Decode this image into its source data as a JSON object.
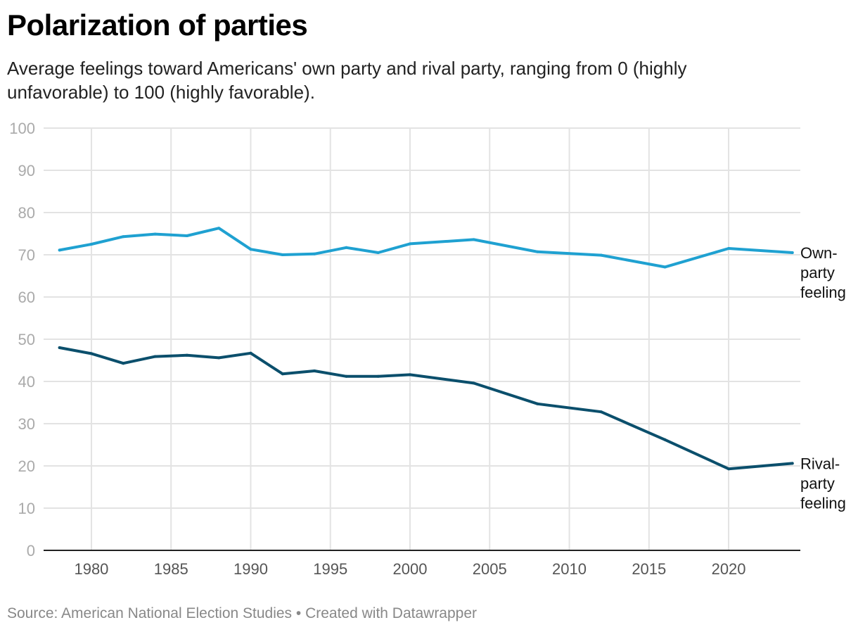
{
  "header": {
    "title": "Polarization of parties",
    "subtitle": "Average feelings toward Americans' own party and rival party, ranging from 0 (highly unfavorable) to 100 (highly favorable)."
  },
  "footer": {
    "source": "Source: American National Election Studies • Created with Datawrapper"
  },
  "chart_data": {
    "type": "line",
    "title": "Polarization of parties",
    "xlabel": "",
    "ylabel": "",
    "xlim": [
      1977,
      2024.5
    ],
    "ylim": [
      0,
      100
    ],
    "yticks": [
      0,
      10,
      20,
      30,
      40,
      50,
      60,
      70,
      80,
      90,
      100
    ],
    "xticks": [
      1980,
      1985,
      1990,
      1995,
      2000,
      2005,
      2010,
      2015,
      2020
    ],
    "grid": true,
    "legend": "direct labels at line ends (right)",
    "x": [
      1978,
      1980,
      1982,
      1984,
      1986,
      1988,
      1990,
      1992,
      1994,
      1996,
      1998,
      2000,
      2004,
      2008,
      2012,
      2016,
      2020,
      2024
    ],
    "series": [
      {
        "name": "Own-party feeling",
        "label_lines": [
          "Own-",
          "party",
          "feeling"
        ],
        "color": "#1fa1d1",
        "values": [
          71.1,
          72.5,
          74.3,
          74.9,
          74.5,
          76.3,
          71.3,
          70.0,
          70.2,
          71.7,
          70.5,
          72.6,
          73.6,
          70.7,
          69.9,
          67.1,
          71.5,
          70.5
        ]
      },
      {
        "name": "Rival-party feeling",
        "label_lines": [
          "Rival-",
          "party",
          "feeling"
        ],
        "color": "#0b4f6c",
        "values": [
          48.0,
          46.6,
          44.3,
          45.9,
          46.2,
          45.6,
          46.7,
          41.8,
          42.5,
          41.2,
          41.2,
          41.6,
          39.6,
          34.7,
          32.8,
          26.2,
          19.3,
          20.6
        ]
      }
    ]
  }
}
